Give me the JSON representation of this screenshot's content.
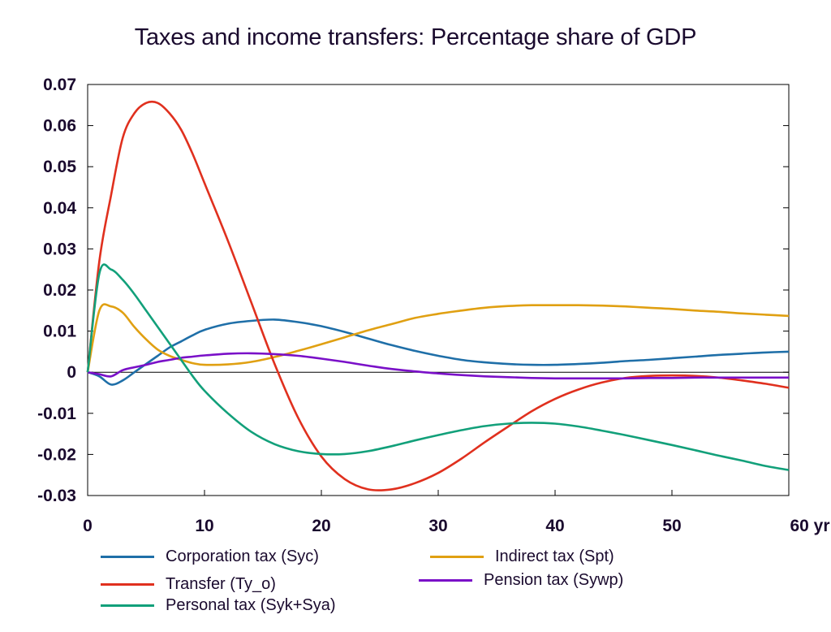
{
  "chart_data": {
    "type": "line",
    "title": "Taxes and income transfers: Percentage share of GDP",
    "xlabel": "",
    "ylabel": "",
    "x_unit_label": "yr",
    "xlim": [
      0,
      60
    ],
    "ylim": [
      -0.03,
      0.07
    ],
    "x_ticks": [
      0,
      10,
      20,
      30,
      40,
      50,
      60
    ],
    "x_tick_labels": [
      "0",
      "10",
      "20",
      "30",
      "40",
      "50",
      "60 yr"
    ],
    "y_ticks": [
      -0.03,
      -0.02,
      -0.01,
      0,
      0.01,
      0.02,
      0.03,
      0.04,
      0.05,
      0.06,
      0.07
    ],
    "y_tick_labels": [
      "-0.03",
      "-0.02",
      "-0.01",
      "0",
      "0.01",
      "0.02",
      "0.03",
      "0.04",
      "0.05",
      "0.06",
      "0.07"
    ],
    "grid": false,
    "legend_position": "bottom",
    "x": [
      0,
      1,
      2,
      3,
      4,
      5,
      6,
      7,
      8,
      9,
      10,
      12,
      14,
      16,
      18,
      20,
      22,
      24,
      26,
      28,
      30,
      32,
      34,
      36,
      38,
      40,
      42,
      44,
      46,
      48,
      50,
      52,
      54,
      56,
      58,
      60
    ],
    "series": [
      {
        "name": "Corporation tax (Syc)",
        "color": "#1f6fa8",
        "values": [
          0,
          -0.001,
          -0.003,
          -0.002,
          0,
          0.002,
          0.004,
          0.006,
          0.0075,
          0.009,
          0.0103,
          0.0118,
          0.0125,
          0.0128,
          0.0122,
          0.0112,
          0.0098,
          0.0082,
          0.0066,
          0.0052,
          0.004,
          0.003,
          0.0024,
          0.002,
          0.0018,
          0.0018,
          0.002,
          0.0023,
          0.0027,
          0.003,
          0.0034,
          0.0038,
          0.0042,
          0.0045,
          0.0048,
          0.005
        ]
      },
      {
        "name": "Indirect tax (Spt)",
        "color": "#e0a012",
        "values": [
          0,
          0.015,
          0.016,
          0.0145,
          0.011,
          0.008,
          0.0055,
          0.004,
          0.003,
          0.0022,
          0.0018,
          0.0019,
          0.0025,
          0.0037,
          0.0052,
          0.0068,
          0.0085,
          0.0102,
          0.0117,
          0.0132,
          0.0142,
          0.015,
          0.0157,
          0.0161,
          0.0163,
          0.0163,
          0.0163,
          0.0162,
          0.016,
          0.0157,
          0.0154,
          0.015,
          0.0147,
          0.0143,
          0.014,
          0.0137
        ]
      },
      {
        "name": "Transfer (Ty_o)",
        "color": "#e0301e",
        "values": [
          0,
          0.027,
          0.043,
          0.057,
          0.063,
          0.0655,
          0.0655,
          0.063,
          0.059,
          0.053,
          0.046,
          0.032,
          0.017,
          0.002,
          -0.011,
          -0.0205,
          -0.026,
          -0.0285,
          -0.0285,
          -0.027,
          -0.0245,
          -0.021,
          -0.017,
          -0.0132,
          -0.0095,
          -0.0065,
          -0.0042,
          -0.0025,
          -0.0014,
          -0.0009,
          -0.0008,
          -0.0009,
          -0.0013,
          -0.002,
          -0.0028,
          -0.0038
        ]
      },
      {
        "name": "Pension tax (Sywp)",
        "color": "#7a10c8",
        "values": [
          0,
          -0.0005,
          -0.001,
          0.0005,
          0.0012,
          0.0018,
          0.0025,
          0.003,
          0.0035,
          0.0038,
          0.0041,
          0.0045,
          0.0046,
          0.0044,
          0.004,
          0.0033,
          0.0025,
          0.0016,
          0.0008,
          0.0002,
          -0.0003,
          -0.0007,
          -0.001,
          -0.0012,
          -0.0014,
          -0.0015,
          -0.0015,
          -0.0015,
          -0.0015,
          -0.0014,
          -0.0014,
          -0.0013,
          -0.0013,
          -0.0013,
          -0.0013,
          -0.0013
        ]
      },
      {
        "name": "Personal tax (Syk+Sya)",
        "color": "#12a07a",
        "values": [
          0,
          0.024,
          0.025,
          0.0225,
          0.019,
          0.015,
          0.011,
          0.007,
          0.003,
          -0.001,
          -0.0045,
          -0.01,
          -0.0145,
          -0.0175,
          -0.0192,
          -0.0199,
          -0.0199,
          -0.0192,
          -0.018,
          -0.0166,
          -0.0153,
          -0.0141,
          -0.0131,
          -0.0125,
          -0.0123,
          -0.0125,
          -0.0132,
          -0.0142,
          -0.0153,
          -0.0165,
          -0.0177,
          -0.019,
          -0.0203,
          -0.0215,
          -0.0228,
          -0.0238
        ]
      }
    ]
  },
  "legend": [
    {
      "name": "Corporation tax (Syc)",
      "color": "#1f6fa8"
    },
    {
      "name": "Indirect tax (Spt)",
      "color": "#e0a012"
    },
    {
      "name": "Transfer (Ty_o)",
      "color": "#e0301e"
    },
    {
      "name": "Pension tax (Sywp)",
      "color": "#7a10c8"
    },
    {
      "name": "Personal tax (Syk+Sya)",
      "color": "#12a07a"
    }
  ]
}
